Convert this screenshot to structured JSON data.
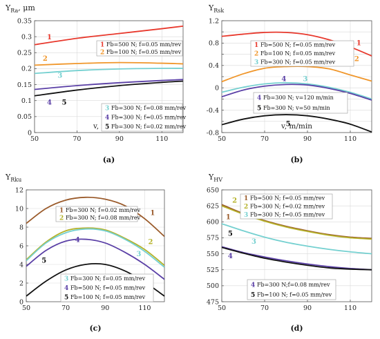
{
  "chart_data": [
    {
      "id": "a",
      "type": "line",
      "panel_label": "(a)",
      "ylabel_main": "Y",
      "ylabel_sub": "Ra",
      "ylabel_unit": ", μm",
      "xlabel": "v, m/min",
      "xlim": [
        50,
        120
      ],
      "ylim": [
        0,
        0.35
      ],
      "xticks": [
        50,
        70,
        90,
        110
      ],
      "yticks": [
        0,
        0.05,
        0.1,
        0.15,
        0.2,
        0.25,
        0.3,
        0.35
      ],
      "ytick_labels": [
        "0",
        "0.05",
        "0.1",
        "0.15",
        "0.2",
        "0.25",
        "0.3",
        "0.35"
      ],
      "grid": true,
      "series": [
        {
          "num": "1",
          "name": "Fb=500 N; f=0.05 mm/rev",
          "color": "#e8382c",
          "x": [
            50,
            70,
            90,
            110,
            120
          ],
          "y": [
            0.275,
            0.295,
            0.31,
            0.325,
            0.333
          ],
          "label_at": [
            57,
            0.292
          ]
        },
        {
          "num": "2",
          "name": "Fb=100 N; f=0.05 mm/rev",
          "color": "#f0962a",
          "x": [
            50,
            70,
            90,
            110,
            120
          ],
          "y": [
            0.211,
            0.216,
            0.219,
            0.217,
            0.215
          ],
          "label_at": [
            55,
            0.225
          ]
        },
        {
          "num": "3",
          "name": "Fb=300 N; f=0.08 mm/rev",
          "color": "#74d0d0",
          "x": [
            50,
            70,
            90,
            110,
            120
          ],
          "y": [
            0.185,
            0.194,
            0.199,
            0.201,
            0.201
          ],
          "label_at": [
            62,
            0.172
          ]
        },
        {
          "num": "4",
          "name": "Fb=300 N; f=0.05 mm/rev",
          "color": "#5a3fa6",
          "x": [
            50,
            70,
            90,
            110,
            120
          ],
          "y": [
            0.135,
            0.147,
            0.156,
            0.163,
            0.166
          ],
          "label_at": [
            57,
            0.087
          ]
        },
        {
          "num": "5",
          "name": "Fb=300 N; f=0.02 mm/rev",
          "color": "#111111",
          "x": [
            50,
            70,
            90,
            110,
            120
          ],
          "y": [
            0.115,
            0.133,
            0.147,
            0.157,
            0.161
          ],
          "label_at": [
            64,
            0.087
          ]
        }
      ],
      "legend_groups": [
        [
          0,
          1
        ],
        [
          2,
          3,
          4
        ]
      ]
    },
    {
      "id": "b",
      "type": "line",
      "panel_label": "(b)",
      "ylabel_main": "Y",
      "ylabel_sub": "Rsk",
      "ylabel_unit": "",
      "xlabel": "v, m/min",
      "xlim": [
        50,
        120
      ],
      "ylim": [
        -0.8,
        1.2
      ],
      "xticks": [
        50,
        70,
        90,
        110
      ],
      "yticks": [
        -0.8,
        -0.6,
        -0.4,
        -0.2,
        0,
        0.2,
        0.4,
        0.6,
        0.8,
        1.0,
        1.2
      ],
      "ytick_labels": [
        "-0.8",
        "",
        "-0.4",
        "",
        "0",
        "",
        "0.4",
        "",
        "0.8",
        "",
        "1.2"
      ],
      "grid": true,
      "series": [
        {
          "num": "1",
          "name": "Fb=500 N; f=0.05 mm/rev",
          "color": "#e8382c",
          "x": [
            50,
            60,
            70,
            80,
            90,
            100,
            110,
            120
          ],
          "y": [
            0.92,
            0.96,
            0.99,
            0.99,
            0.95,
            0.86,
            0.73,
            0.57
          ],
          "label_at": [
            114,
            0.76
          ]
        },
        {
          "num": "2",
          "name": "Fb=100 N; f=0.05 mm/rev",
          "color": "#f0962a",
          "x": [
            50,
            60,
            70,
            80,
            90,
            100,
            110,
            120
          ],
          "y": [
            0.11,
            0.25,
            0.35,
            0.38,
            0.38,
            0.34,
            0.23,
            0.12
          ],
          "label_at": [
            113,
            0.48
          ]
        },
        {
          "num": "3",
          "name": "Fb=300 N; f=0.05 mm/rev",
          "color": "#74d0d0",
          "x": [
            50,
            60,
            70,
            80,
            90,
            100,
            110,
            120
          ],
          "y": [
            -0.08,
            0.01,
            0.07,
            0.09,
            0.07,
            0.01,
            -0.08,
            -0.2
          ],
          "label_at": [
            89,
            0.12
          ]
        },
        {
          "num": "4",
          "name": "Fb=300 N; v=120 m/min",
          "color": "#5a3fa6",
          "x": [
            50,
            60,
            70,
            80,
            90,
            100,
            110,
            120
          ],
          "y": [
            -0.16,
            -0.04,
            0.03,
            0.06,
            0.05,
            -0.01,
            -0.1,
            -0.22
          ],
          "label_at": [
            79,
            0.12
          ]
        },
        {
          "num": "5",
          "name": "Fb=300 N; v=50 m/min",
          "color": "#111111",
          "x": [
            50,
            60,
            70,
            80,
            90,
            100,
            110,
            120
          ],
          "y": [
            -0.66,
            -0.56,
            -0.5,
            -0.48,
            -0.5,
            -0.56,
            -0.65,
            -0.79
          ],
          "label_at": [
            81,
            -0.68
          ]
        }
      ],
      "legend_groups": [
        [
          0,
          1,
          2
        ],
        [
          3,
          4
        ]
      ]
    },
    {
      "id": "c",
      "type": "line",
      "panel_label": "(c)",
      "ylabel_main": "Y",
      "ylabel_sub": "Rku",
      "ylabel_unit": "",
      "xlabel": "v, m/min",
      "xlim": [
        50,
        120
      ],
      "ylim": [
        0,
        12
      ],
      "xticks": [
        50,
        70,
        90,
        110
      ],
      "yticks": [
        0,
        2,
        4,
        6,
        8,
        10,
        12
      ],
      "ytick_labels": [
        "0",
        "2",
        "4",
        "6",
        "8",
        "10",
        "12"
      ],
      "grid": true,
      "series": [
        {
          "num": "1",
          "name": "Fb=300 N; f=0.02 mm/rev",
          "color": "#9a5a2a",
          "x": [
            50,
            60,
            70,
            80,
            90,
            100,
            110,
            120
          ],
          "y": [
            8.4,
            10.0,
            10.9,
            11.2,
            11.0,
            10.3,
            8.9,
            7.0
          ],
          "label_at": [
            114,
            9.3
          ]
        },
        {
          "num": "2",
          "name": "Fb=300 N; f=0.08 mm/rev",
          "color": "#b5b22a",
          "x": [
            50,
            60,
            70,
            80,
            90,
            100,
            110,
            120
          ],
          "y": [
            4.5,
            6.4,
            7.6,
            7.9,
            7.7,
            6.8,
            5.6,
            3.9
          ],
          "label_at": [
            113,
            6.2
          ]
        },
        {
          "num": "3",
          "name": "Fb=300 N; f=0.05 mm/rev",
          "color": "#74d0d0",
          "x": [
            50,
            60,
            70,
            80,
            90,
            100,
            110,
            120
          ],
          "y": [
            4.4,
            6.3,
            7.4,
            7.8,
            7.6,
            6.7,
            5.4,
            3.7
          ],
          "label_at": [
            107,
            4.9
          ]
        },
        {
          "num": "4",
          "name": "Fb=500 N; f=0.05 mm/rev",
          "color": "#5a3fa6",
          "x": [
            50,
            60,
            70,
            80,
            90,
            100,
            110,
            120
          ],
          "y": [
            3.8,
            5.5,
            6.5,
            6.7,
            6.3,
            5.3,
            4.0,
            2.4
          ],
          "label_at": [
            76,
            6.4
          ]
        },
        {
          "num": "5",
          "name": "Fb=100 N; f=0.05 mm/rev",
          "color": "#111111",
          "x": [
            50,
            60,
            70,
            80,
            90,
            100,
            110,
            120
          ],
          "y": [
            0.6,
            2.2,
            3.4,
            4.0,
            4.0,
            3.3,
            2.1,
            0.6
          ],
          "label_at": [
            59,
            4.2
          ]
        }
      ],
      "legend_groups": [
        [
          0,
          1
        ],
        [
          2,
          3,
          4
        ]
      ]
    },
    {
      "id": "d",
      "type": "line",
      "panel_label": "(d)",
      "ylabel_main": "Y",
      "ylabel_sub": "HV",
      "ylabel_unit": "",
      "xlabel": "v, m/min",
      "xlim": [
        50,
        120
      ],
      "ylim": [
        475,
        650
      ],
      "xticks": [
        50,
        70,
        90,
        110
      ],
      "yticks": [
        475,
        500,
        525,
        550,
        575,
        600,
        625,
        650
      ],
      "ytick_labels": [
        "475",
        "500",
        "525",
        "550",
        "575",
        "600",
        "625",
        "650"
      ],
      "grid": true,
      "series": [
        {
          "num": "1",
          "name": "Fb=500 N; f=0.05 mm/rev",
          "color": "#9a5a2a",
          "x": [
            50,
            60,
            70,
            80,
            90,
            100,
            110,
            120
          ],
          "y": [
            627,
            613,
            602,
            593,
            586,
            580,
            576,
            574
          ],
          "label_at": [
            53,
            604
          ]
        },
        {
          "num": "2",
          "name": "Fb=300 N; f=0.02 mm/rev",
          "color": "#b5b22a",
          "x": [
            50,
            60,
            70,
            80,
            90,
            100,
            110,
            120
          ],
          "y": [
            625,
            612,
            601,
            592,
            585,
            579,
            575,
            573
          ],
          "label_at": [
            56,
            630
          ]
        },
        {
          "num": "3",
          "name": "Fb=300 N; f=0.05 mm/rev",
          "color": "#74d0d0",
          "x": [
            50,
            60,
            70,
            80,
            90,
            100,
            110,
            120
          ],
          "y": [
            597,
            586,
            576,
            568,
            562,
            557,
            553,
            550
          ],
          "label_at": [
            65,
            566
          ]
        },
        {
          "num": "4",
          "name": "Fb=300 N;f=0.08 mm/rev",
          "color": "#5a3fa6",
          "x": [
            50,
            60,
            70,
            80,
            90,
            100,
            110,
            120
          ],
          "y": [
            561,
            552,
            545,
            539,
            534,
            530,
            527,
            525
          ],
          "label_at": [
            54,
            543
          ]
        },
        {
          "num": "5",
          "name": "Fb=100 N; f=0.05 mm/rev",
          "color": "#111111",
          "x": [
            50,
            60,
            70,
            80,
            90,
            100,
            110,
            120
          ],
          "y": [
            560,
            551,
            543,
            537,
            532,
            528,
            526,
            525
          ],
          "label_at": [
            54,
            578
          ]
        }
      ],
      "legend_groups": [
        [
          0,
          1,
          2
        ],
        [
          3,
          4
        ]
      ]
    }
  ]
}
